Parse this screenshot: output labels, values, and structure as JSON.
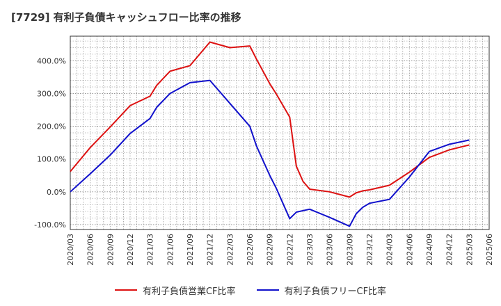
{
  "title": "[7729]  有利子負債キャッシュフロー比率の推移",
  "chart_data": {
    "type": "line",
    "title": "[7729]  有利子負債キャッシュフロー比率の推移",
    "xlabel": "",
    "ylabel": "",
    "ylim": [
      -115,
      475
    ],
    "y_ticks": [
      -100,
      0,
      100,
      200,
      300,
      400
    ],
    "y_tick_labels": [
      "-100.0%",
      "0.0%",
      "100.0%",
      "200.0%",
      "300.0%",
      "400.0%"
    ],
    "x_tick_labels": [
      "2020/03",
      "2020/06",
      "2020/09",
      "2020/12",
      "2021/03",
      "2021/06",
      "2021/09",
      "2021/12",
      "2022/03",
      "2022/06",
      "2022/09",
      "2022/12",
      "2023/03",
      "2023/06",
      "2023/09",
      "2023/12",
      "2024/03",
      "2024/06",
      "2024/09",
      "2024/12",
      "2025/03",
      "2025/06"
    ],
    "grid": true,
    "legend_position": "bottom",
    "series": [
      {
        "name": "有利子負債営業CF比率",
        "color": "#dd1111",
        "points": [
          [
            "2020/03",
            62
          ],
          [
            "2020/06",
            135
          ],
          [
            "2020/09",
            198
          ],
          [
            "2020/12",
            263
          ],
          [
            "2021/03",
            292
          ],
          [
            "2021/04",
            325
          ],
          [
            "2021/06",
            368
          ],
          [
            "2021/09",
            385
          ],
          [
            "2021/12",
            457
          ],
          [
            "2022/03",
            440
          ],
          [
            "2022/06",
            445
          ],
          [
            "2022/07",
            405
          ],
          [
            "2022/09",
            330
          ],
          [
            "2022/10",
            298
          ],
          [
            "2022/12",
            228
          ],
          [
            "2023/01",
            78
          ],
          [
            "2023/02",
            32
          ],
          [
            "2023/03",
            8
          ],
          [
            "2023/06",
            0
          ],
          [
            "2023/09",
            -16
          ],
          [
            "2023/10",
            -3
          ],
          [
            "2023/11",
            3
          ],
          [
            "2023/12",
            6
          ],
          [
            "2024/03",
            20
          ],
          [
            "2024/06",
            60
          ],
          [
            "2024/09",
            105
          ],
          [
            "2024/12",
            128
          ],
          [
            "2025/03",
            143
          ]
        ]
      },
      {
        "name": "有利子負債フリーCF比率",
        "color": "#1111cc",
        "points": [
          [
            "2020/03",
            0
          ],
          [
            "2020/06",
            55
          ],
          [
            "2020/09",
            112
          ],
          [
            "2020/12",
            178
          ],
          [
            "2021/03",
            224
          ],
          [
            "2021/04",
            258
          ],
          [
            "2021/06",
            300
          ],
          [
            "2021/09",
            333
          ],
          [
            "2021/12",
            340
          ],
          [
            "2022/03",
            270
          ],
          [
            "2022/06",
            200
          ],
          [
            "2022/07",
            140
          ],
          [
            "2022/09",
            50
          ],
          [
            "2022/10",
            10
          ],
          [
            "2022/12",
            -82
          ],
          [
            "2023/01",
            -62
          ],
          [
            "2023/03",
            -53
          ],
          [
            "2023/06",
            -78
          ],
          [
            "2023/09",
            -105
          ],
          [
            "2023/10",
            -67
          ],
          [
            "2023/11",
            -47
          ],
          [
            "2023/12",
            -35
          ],
          [
            "2024/03",
            -23
          ],
          [
            "2024/06",
            45
          ],
          [
            "2024/09",
            123
          ],
          [
            "2024/12",
            145
          ],
          [
            "2025/03",
            158
          ]
        ]
      }
    ]
  }
}
